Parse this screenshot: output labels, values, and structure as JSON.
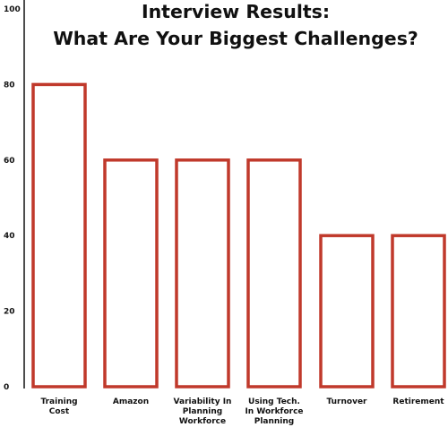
{
  "chart_data": {
    "type": "bar",
    "title": "Interview Results:\nWhat Are Your Biggest Challenges?",
    "xlabel": "",
    "ylabel": "",
    "ylim": [
      0,
      100
    ],
    "yticks": [
      0,
      20,
      40,
      60,
      80,
      100
    ],
    "categories": [
      "Training\nCost",
      "Amazon",
      "Variability In\nPlanning\nWorkforce",
      "Using Tech.\nIn Workforce\nPlanning",
      "Turnover",
      "Retirement"
    ],
    "values": [
      80,
      60,
      60,
      60,
      40,
      40
    ],
    "grid": false,
    "legend": "none",
    "colors": {
      "bar_stroke": "#c0392b",
      "bar_fill": "#ffffff",
      "axis": "#111111",
      "text": "#111111"
    }
  }
}
